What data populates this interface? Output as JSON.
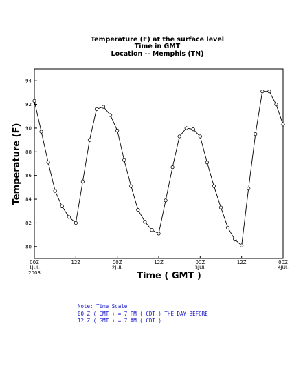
{
  "chart_data": {
    "type": "line",
    "title_lines": [
      "Temperature (F) at the surface level",
      "Time in GMT",
      "Location -- Memphis (TN)"
    ],
    "xlabel": "Time ( GMT )",
    "ylabel": "Temperature (F)",
    "ylim": [
      79,
      95
    ],
    "yticks": [
      80,
      82,
      84,
      86,
      88,
      90,
      92,
      94
    ],
    "x_unit": "hours from 00Z 1JUL 2003",
    "xlim": [
      0,
      72
    ],
    "xticks": [
      {
        "x": 0,
        "lines": [
          "00Z",
          "1JUL",
          "2003"
        ]
      },
      {
        "x": 12,
        "lines": [
          "12Z"
        ]
      },
      {
        "x": 24,
        "lines": [
          "00Z",
          "2JUL"
        ]
      },
      {
        "x": 36,
        "lines": [
          "12Z"
        ]
      },
      {
        "x": 48,
        "lines": [
          "00Z",
          "3JUL"
        ]
      },
      {
        "x": 60,
        "lines": [
          "12Z"
        ]
      },
      {
        "x": 72,
        "lines": [
          "00Z",
          "4JUL"
        ]
      }
    ],
    "grid": false,
    "x": [
      0,
      2,
      4,
      6,
      8,
      10,
      12,
      14,
      16,
      18,
      20,
      22,
      24,
      26,
      28,
      30,
      32,
      34,
      36,
      38,
      40,
      42,
      44,
      46,
      48,
      50,
      52,
      54,
      56,
      58,
      60,
      62,
      64,
      66,
      68,
      70,
      72
    ],
    "values": [
      92.3,
      89.7,
      87.1,
      84.7,
      83.4,
      82.5,
      82.0,
      85.5,
      89.0,
      91.6,
      91.8,
      91.1,
      89.8,
      87.3,
      85.1,
      83.1,
      82.1,
      81.4,
      81.1,
      83.9,
      86.7,
      89.3,
      90.0,
      89.9,
      89.3,
      87.1,
      85.1,
      83.3,
      81.6,
      80.6,
      80.1,
      84.9,
      89.5,
      93.1,
      93.1,
      92.0,
      90.3
    ]
  },
  "note": {
    "lines": [
      "Note: Time Scale",
      "00 Z ( GMT ) = 7 PM ( CDT ) THE DAY BEFORE",
      "12 Z ( GMT ) = 7 AM ( CDT )"
    ]
  }
}
